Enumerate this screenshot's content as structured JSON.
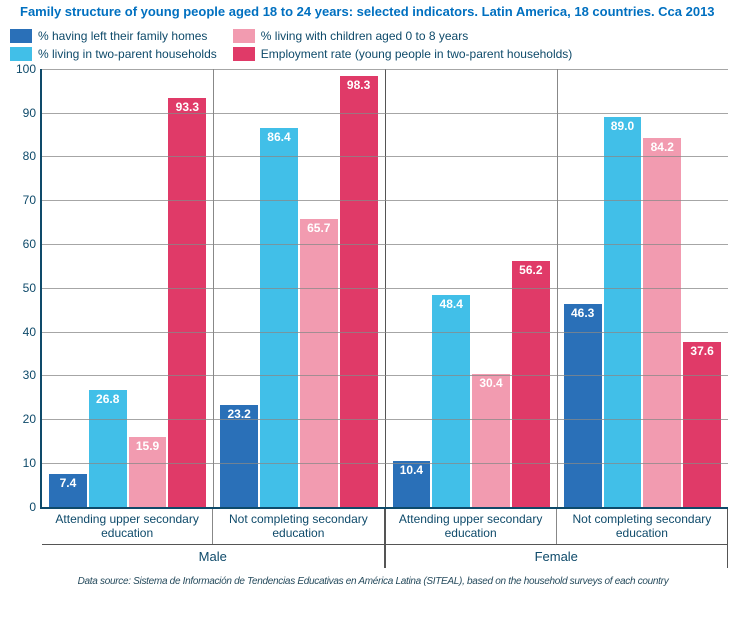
{
  "title": "Family structure of young people aged 18 to 24 years: selected indicators. Latin America, 18 countries. Cca 2013",
  "legend": [
    {
      "label": "% having left their family homes",
      "color": "#2a70b8"
    },
    {
      "label": "% living in two-parent households",
      "color": "#41bfe8"
    },
    {
      "label": "% living with children aged 0 to 8 years",
      "color": "#f29bb0"
    },
    {
      "label": "Employment rate (young people in two-parent households)",
      "color": "#e03a68"
    }
  ],
  "chart": {
    "type": "bar",
    "ylim": [
      0,
      100
    ],
    "ytick_step": 10,
    "grid_color": "#888888",
    "axis_color": "#0e4a6a",
    "background": "#ffffff",
    "value_label_color": "#ffffff",
    "value_label_fontsize": 12,
    "series_colors": [
      "#2a70b8",
      "#41bfe8",
      "#f29bb0",
      "#e03a68"
    ],
    "outer_groups": [
      {
        "label": "Male",
        "subgroups": [
          {
            "label": "Attending upper secondary education",
            "values": [
              7.4,
              26.8,
              15.9,
              93.3
            ]
          },
          {
            "label": "Not completing secondary education",
            "values": [
              23.2,
              86.4,
              65.7,
              98.3
            ]
          }
        ]
      },
      {
        "label": "Female",
        "subgroups": [
          {
            "label": "Attending upper secondary education",
            "values": [
              10.4,
              48.4,
              30.4,
              56.2
            ]
          },
          {
            "label": "Not completing secondary education",
            "values": [
              46.3,
              89.0,
              84.2,
              37.6
            ]
          }
        ]
      }
    ]
  },
  "footer": "Data source: Sistema de Información de Tendencias Educativas en América Latina  (SITEAL), based on the household surveys of each country"
}
